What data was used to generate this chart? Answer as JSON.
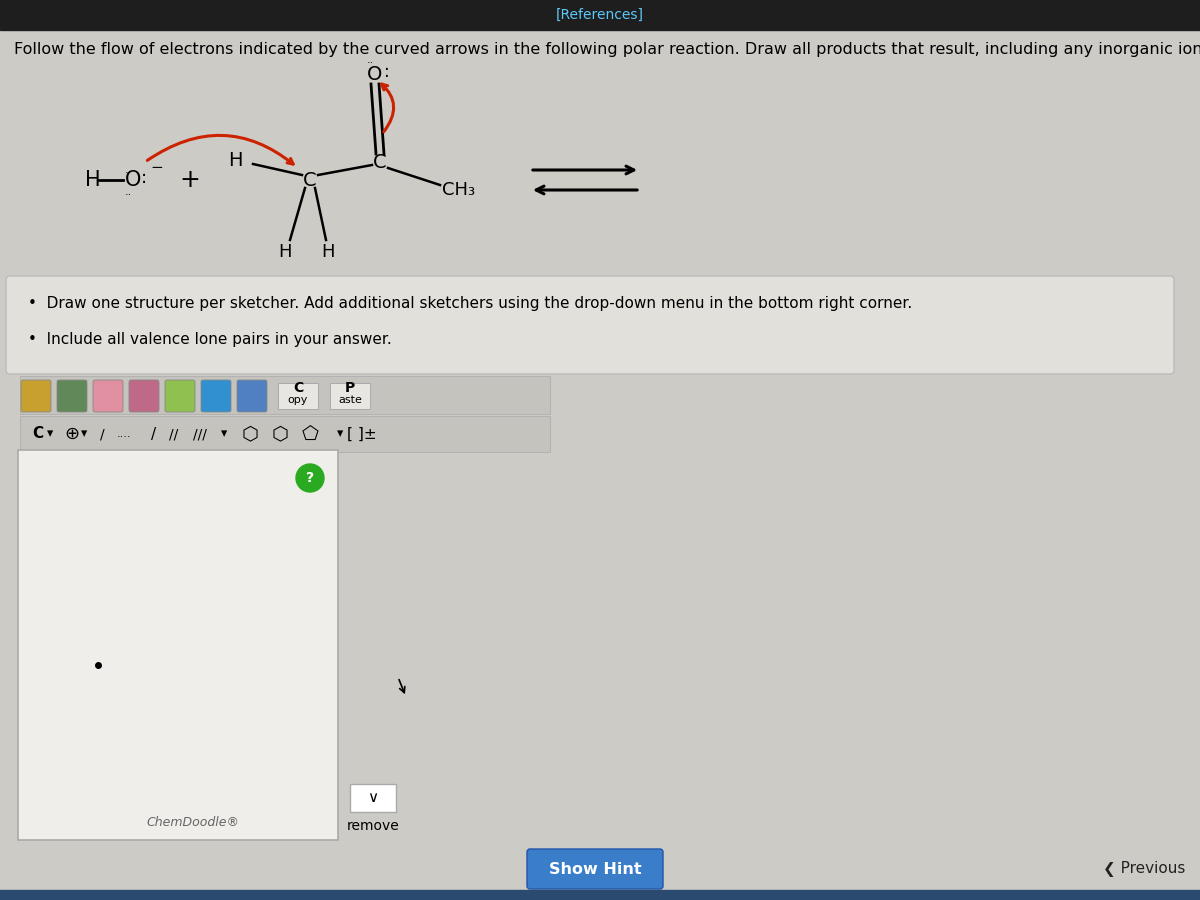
{
  "bg_top_bar": "#1e1e1e",
  "bg_main": "#cccbc6",
  "references_text": "[References]",
  "references_color": "#5bc8f5",
  "title_line1": "Follow the flow of electrons indicated by the curved arrows in the following polar reaction. Draw all products that result, including any inorganic ions.",
  "title_fontsize": 12.5,
  "instruction_box_bg": "#e2e0da",
  "instruction_lines": [
    "Draw one structure per sketcher. Add additional sketchers using the drop-down menu in the bottom right corner.",
    "Include all valence lone pairs in your answer."
  ],
  "chemdoodle_label": "ChemDoodle®",
  "remove_text": "remove",
  "show_hint_text": "Show Hint",
  "show_hint_bg": "#3a7dc9",
  "previous_text": "Previous",
  "drawing_box_bg": "#f0eeea",
  "drawing_box_border": "#999999",
  "arrow_red": "#cc2200",
  "bottom_bar": "#2a4a70"
}
